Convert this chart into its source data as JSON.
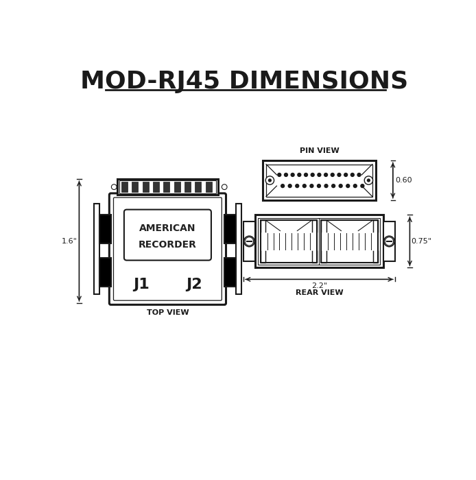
{
  "title": "MOD-RJ45 DIMENSIONS",
  "bg_color": "#ffffff",
  "line_color": "#1a1a1a",
  "title_fontsize": 26,
  "label_fontsize": 8,
  "dim_fontsize": 8,
  "top_view_label": "TOP VIEW",
  "rear_view_label": "REAR VIEW",
  "pin_view_label": "PIN VIEW",
  "dim_16": "1.6\"",
  "dim_060": "0.60",
  "dim_075": "0.75\"",
  "dim_22": "2.2\"",
  "j1_label": "J1",
  "j2_label": "J2",
  "ar_line1": "AMERICAN",
  "ar_line2": "RECORDER"
}
